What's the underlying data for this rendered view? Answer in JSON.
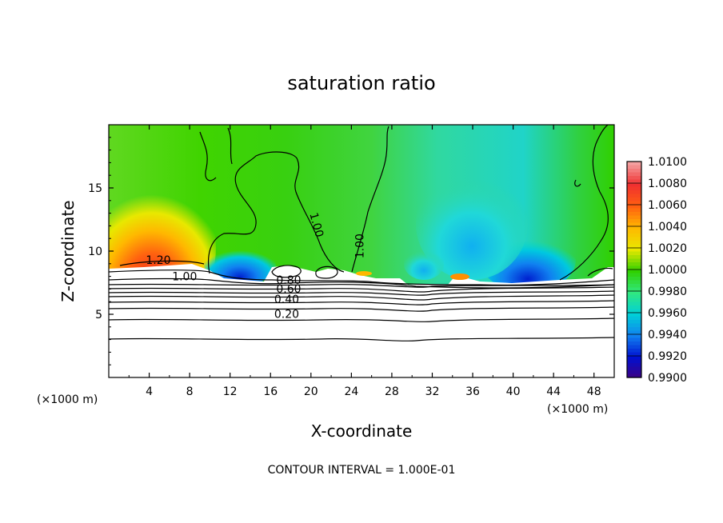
{
  "chart_data": {
    "type": "heatmap",
    "title": "saturation ratio",
    "xlabel": "X-coordinate",
    "ylabel": "Z-coordinate",
    "x_unit_left": "(×1000 m)",
    "x_unit_right": "(×1000 m)",
    "xlim": [
      0,
      50
    ],
    "ylim": [
      0,
      20
    ],
    "x_ticks": [
      "4",
      "8",
      "12",
      "16",
      "20",
      "24",
      "28",
      "32",
      "36",
      "40",
      "44",
      "48"
    ],
    "x_tick_values": [
      4,
      8,
      12,
      16,
      20,
      24,
      28,
      32,
      36,
      40,
      44,
      48
    ],
    "y_ticks": [
      "5",
      "10",
      "15"
    ],
    "y_tick_values": [
      5,
      10,
      15
    ],
    "colorbar": {
      "labels": [
        "1.0100",
        "1.0080",
        "1.0060",
        "1.0040",
        "1.0020",
        "1.0000",
        "0.9980",
        "0.9960",
        "0.9940",
        "0.9920",
        "0.9900"
      ],
      "values": [
        1.01,
        1.008,
        1.006,
        1.004,
        1.002,
        1.0,
        0.998,
        0.996,
        0.994,
        0.992,
        0.99
      ],
      "colors": [
        "#f4a0a0",
        "#f03030",
        "#ff6010",
        "#ffb800",
        "#e8e800",
        "#30d000",
        "#30e880",
        "#00d0d8",
        "#1080f0",
        "#0010d0",
        "#400080"
      ]
    },
    "contour_labels": [
      {
        "text": "1.20",
        "x": 4.9,
        "z": 9.0
      },
      {
        "text": "1.00",
        "x": 7.5,
        "z": 7.7
      },
      {
        "text": "1.00",
        "x": 20.2,
        "z": 12.0
      },
      {
        "text": "1.00",
        "x": 25.2,
        "z": 10.4
      },
      {
        "text": "0.80",
        "x": 17.8,
        "z": 7.4
      },
      {
        "text": "0.60",
        "x": 17.8,
        "z": 6.7
      },
      {
        "text": "0.40",
        "x": 17.6,
        "z": 5.9
      },
      {
        "text": "0.20",
        "x": 17.6,
        "z": 4.7
      }
    ],
    "contour_levels": [
      0.1,
      0.2,
      0.3,
      0.4,
      0.5,
      0.6,
      0.7,
      0.8,
      0.9,
      1.0,
      1.1,
      1.2
    ],
    "note": "CONTOUR INTERVAL = 1.000E-01",
    "grid": false,
    "colors": {
      "green": "#30d000",
      "cyan": "#00d8c8",
      "blue": "#1070f0",
      "red": "#f03030",
      "orange": "#ff9000",
      "yellow": "#f0e000"
    }
  }
}
